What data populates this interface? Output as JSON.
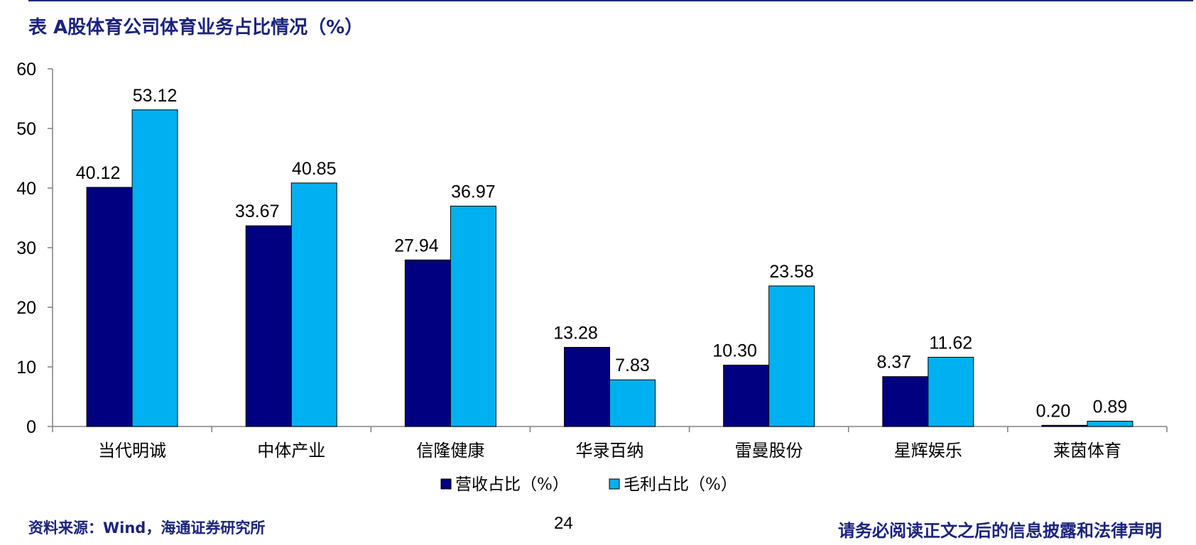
{
  "page": {
    "title": "表 A股体育公司体育业务占比情况（%）",
    "source": "资料来源：Wind，海通证券研究所",
    "page_number": "24",
    "disclaimer": "请务必阅读正文之后的信息披露和法律声明"
  },
  "colors": {
    "series1": "#000080",
    "series2": "#00b0f0",
    "title_blue": "#1a237e"
  },
  "chart_data": {
    "type": "bar",
    "title": "",
    "xlabel": "",
    "ylabel": "",
    "ylim": [
      0,
      60
    ],
    "yticks": [
      0,
      10,
      20,
      30,
      40,
      50,
      60
    ],
    "categories": [
      "当代明诚",
      "中体产业",
      "信隆健康",
      "华录百纳",
      "雷曼股份",
      "星辉娱乐",
      "莱茵体育"
    ],
    "series": [
      {
        "name": "营收占比（%）",
        "values": [
          40.12,
          33.67,
          27.94,
          13.28,
          10.3,
          8.37,
          0.2
        ],
        "labels": [
          "40.12",
          "33.67",
          "27.94",
          "13.28",
          "10.30",
          "8.37",
          "0.20"
        ]
      },
      {
        "name": "毛利占比（%）",
        "values": [
          53.12,
          40.85,
          36.97,
          7.83,
          23.58,
          11.62,
          0.89
        ],
        "labels": [
          "53.12",
          "40.85",
          "36.97",
          "7.83",
          "23.58",
          "11.62",
          "0.89"
        ]
      }
    ],
    "grid": false,
    "legend_position": "bottom"
  }
}
